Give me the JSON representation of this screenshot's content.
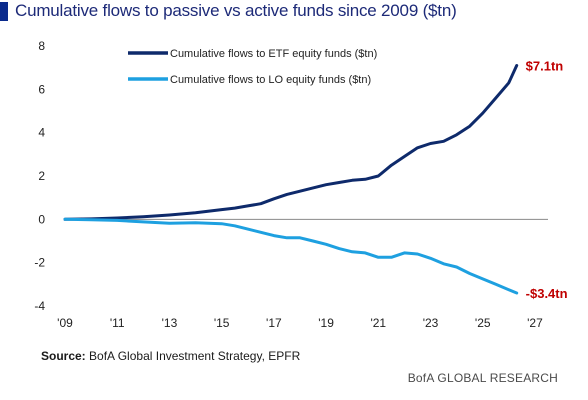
{
  "title": "Cumulative flows to passive vs active funds since 2009 ($tn)",
  "source_label": "Source:",
  "source_text": "BofA Global Investment Strategy, EPFR",
  "brand": "BofA GLOBAL RESEARCH",
  "colors": {
    "accent": "#0a2a8c",
    "etf": "#0e2a6b",
    "lo": "#1ea0e0",
    "annotation": "#c00000"
  },
  "chart_data": {
    "type": "line",
    "title": "Cumulative flows to passive vs active funds since 2009 ($tn)",
    "xlabel": "",
    "ylabel": "",
    "xlim": [
      2009,
      2027.5
    ],
    "ylim": [
      -4,
      8
    ],
    "x_ticks": [
      2009,
      2011,
      2013,
      2015,
      2017,
      2019,
      2021,
      2023,
      2025,
      2027
    ],
    "x_tick_labels": [
      "'09",
      "'11",
      "'13",
      "'15",
      "'17",
      "'19",
      "'21",
      "'23",
      "'25",
      "'27"
    ],
    "y_ticks": [
      -4,
      -2,
      0,
      2,
      4,
      6,
      8
    ],
    "y_tick_labels": [
      "-4",
      "-2",
      "0",
      "2",
      "4",
      "6",
      "8"
    ],
    "grid": false,
    "legend": "top-center",
    "series": [
      {
        "name": "Cumulative flows to ETF equity funds ($tn)",
        "color": "#0e2a6b",
        "x": [
          2009.0,
          2010.0,
          2011.0,
          2012.0,
          2013.0,
          2014.0,
          2015.0,
          2015.5,
          2016.0,
          2016.5,
          2017.0,
          2017.5,
          2018.0,
          2018.5,
          2019.0,
          2019.5,
          2020.0,
          2020.5,
          2021.0,
          2021.5,
          2022.0,
          2022.5,
          2023.0,
          2023.5,
          2024.0,
          2024.5,
          2025.0,
          2025.5,
          2026.0,
          2026.3
        ],
        "values": [
          0.0,
          0.02,
          0.06,
          0.12,
          0.2,
          0.3,
          0.45,
          0.52,
          0.62,
          0.72,
          0.95,
          1.15,
          1.3,
          1.45,
          1.6,
          1.7,
          1.8,
          1.85,
          2.0,
          2.5,
          2.9,
          3.3,
          3.5,
          3.6,
          3.9,
          4.3,
          4.9,
          5.6,
          6.3,
          7.1
        ]
      },
      {
        "name": "Cumulative flows to LO equity funds ($tn)",
        "color": "#1ea0e0",
        "x": [
          2009.0,
          2010.0,
          2011.0,
          2012.0,
          2013.0,
          2014.0,
          2015.0,
          2015.5,
          2016.0,
          2016.5,
          2017.0,
          2017.5,
          2018.0,
          2018.5,
          2019.0,
          2019.5,
          2020.0,
          2020.5,
          2021.0,
          2021.5,
          2022.0,
          2022.5,
          2023.0,
          2023.5,
          2024.0,
          2024.5,
          2025.0,
          2025.5,
          2026.0,
          2026.3
        ],
        "values": [
          0.0,
          -0.02,
          -0.05,
          -0.12,
          -0.18,
          -0.16,
          -0.2,
          -0.3,
          -0.45,
          -0.6,
          -0.75,
          -0.85,
          -0.85,
          -1.0,
          -1.15,
          -1.35,
          -1.5,
          -1.55,
          -1.75,
          -1.75,
          -1.55,
          -1.6,
          -1.8,
          -2.05,
          -2.2,
          -2.5,
          -2.75,
          -3.0,
          -3.25,
          -3.4
        ]
      }
    ],
    "annotations": [
      {
        "text": "$7.1tn",
        "x": 2026.3,
        "y": 7.1,
        "series": 0
      },
      {
        "text": "-$3.4tn",
        "x": 2026.3,
        "y": -3.4,
        "series": 1
      }
    ]
  }
}
